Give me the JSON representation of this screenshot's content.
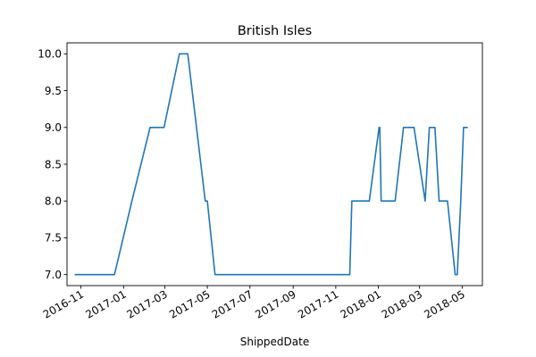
{
  "chart_data": {
    "type": "line",
    "title": "British Isles",
    "xlabel": "ShippedDate",
    "ylabel": "",
    "xlim": [
      "2016-10-12",
      "2018-05-30"
    ],
    "ylim": [
      6.85,
      10.15
    ],
    "grid": false,
    "x_ticks": [
      "2016-11-01",
      "2017-01-01",
      "2017-03-01",
      "2017-05-01",
      "2017-07-01",
      "2017-09-01",
      "2017-11-01",
      "2018-01-01",
      "2018-03-01",
      "2018-05-01"
    ],
    "x_tick_labels": [
      "2016-11",
      "2017-01",
      "2017-03",
      "2017-05",
      "2017-07",
      "2017-09",
      "2017-11",
      "2018-01",
      "2018-03",
      "2018-05"
    ],
    "y_ticks": [
      7.0,
      7.5,
      8.0,
      8.5,
      9.0,
      9.5,
      10.0
    ],
    "y_tick_labels": [
      "7.0",
      "7.5",
      "8.0",
      "8.5",
      "9.0",
      "9.5",
      "10.0"
    ],
    "series": [
      {
        "color": "#1f77b4",
        "points": [
          [
            "2016-10-24",
            7.0
          ],
          [
            "2016-12-19",
            7.0
          ],
          [
            "2017-01-13",
            8.0
          ],
          [
            "2017-02-08",
            9.0
          ],
          [
            "2017-02-28",
            9.0
          ],
          [
            "2017-03-22",
            10.0
          ],
          [
            "2017-04-03",
            10.0
          ],
          [
            "2017-04-28",
            8.0
          ],
          [
            "2017-05-01",
            8.0
          ],
          [
            "2017-05-12",
            7.0
          ],
          [
            "2017-11-21",
            7.0
          ],
          [
            "2017-11-24",
            8.0
          ],
          [
            "2017-12-19",
            8.0
          ],
          [
            "2018-01-02",
            9.0
          ],
          [
            "2018-01-03",
            9.0
          ],
          [
            "2018-01-05",
            8.0
          ],
          [
            "2018-01-25",
            8.0
          ],
          [
            "2018-02-06",
            9.0
          ],
          [
            "2018-02-21",
            9.0
          ],
          [
            "2018-03-09",
            8.0
          ],
          [
            "2018-03-15",
            9.0
          ],
          [
            "2018-03-23",
            9.0
          ],
          [
            "2018-03-29",
            8.0
          ],
          [
            "2018-04-10",
            8.0
          ],
          [
            "2018-04-21",
            7.0
          ],
          [
            "2018-04-24",
            7.0
          ],
          [
            "2018-04-29",
            8.0
          ],
          [
            "2018-05-03",
            9.0
          ],
          [
            "2018-05-08",
            9.0
          ]
        ]
      }
    ]
  }
}
